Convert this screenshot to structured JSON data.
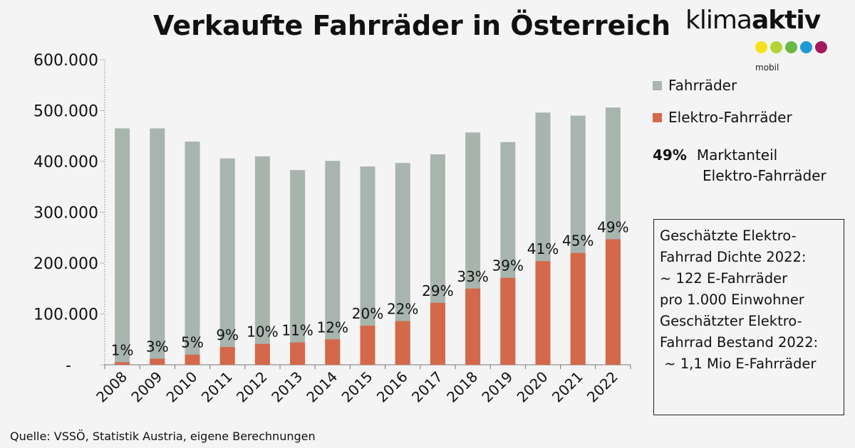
{
  "chart_data": {
    "type": "bar",
    "stacked": false,
    "title": "Verkaufte Fahrräder in Österreich",
    "categories": [
      "2008",
      "2009",
      "2010",
      "2011",
      "2012",
      "2013",
      "2014",
      "2015",
      "2016",
      "2017",
      "2018",
      "2019",
      "2020",
      "2021",
      "2022"
    ],
    "series": [
      {
        "name": "Fahrräder",
        "color": "#a8b5ae",
        "values": [
          465000,
          465000,
          439000,
          406000,
          410000,
          383000,
          401000,
          390000,
          397000,
          414000,
          457000,
          438000,
          496000,
          490000,
          506000
        ]
      },
      {
        "name": "Elektro-Fahrräder",
        "color": "#d4684a",
        "values": [
          5000,
          12000,
          20000,
          35000,
          41000,
          44000,
          50000,
          77000,
          86000,
          122000,
          150000,
          171000,
          204000,
          220000,
          247000
        ]
      }
    ],
    "data_labels": [
      "1%",
      "3%",
      "5%",
      "9%",
      "10%",
      "11%",
      "12%",
      "20%",
      "22%",
      "29%",
      "33%",
      "39%",
      "41%",
      "45%",
      "49%"
    ],
    "ylim": [
      0,
      600000
    ],
    "yticks": [
      0,
      100000,
      200000,
      300000,
      400000,
      500000,
      600000
    ],
    "ytick_labels": [
      "-",
      "100.000",
      "200.000",
      "300.000",
      "400.000",
      "500.000",
      "600.000"
    ],
    "grid": false,
    "legend_placement": "right"
  },
  "legend": {
    "share_value": "49%",
    "share_label_1": "Marktanteil",
    "share_label_2": "Elektro-Fahrräder"
  },
  "info_box": {
    "text": "Geschätzte Elektro-\nFahrrad Dichte 2022:\n~ 122 E-Fahrräder\npro 1.000 Einwohner\nGeschätzter Elektro-\nFahrrad Bestand 2022:\n ~ 1,1 Mio E-Fahrräder"
  },
  "logo": {
    "word_light": "klima",
    "word_bold": "aktiv",
    "sub": "mobil",
    "dot_colors": [
      "#f5e21a",
      "#b5d334",
      "#6bb844",
      "#1f98d6",
      "#a5175f"
    ]
  },
  "source": "Quelle: VSSÖ, Statistik Austria, eigene Berechnungen",
  "colors": {
    "background": "#f3f4f3"
  }
}
